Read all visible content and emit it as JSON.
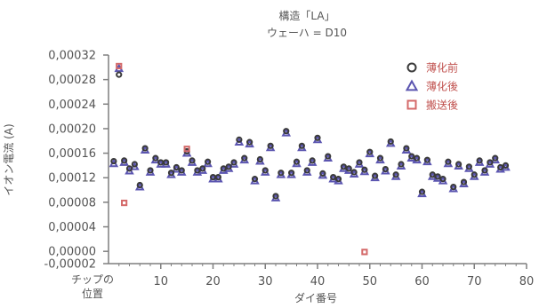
{
  "chart_data": {
    "type": "scatter",
    "title": "構造「LA」",
    "subtitle": "ウェーハ = D10",
    "xlabel": "ダイ番号",
    "ylabel": "イオン電流 (A)",
    "x_first_label_lines": [
      "チップの",
      "位置"
    ],
    "xlim": [
      0,
      80
    ],
    "ylim": [
      -2e-05,
      0.00032
    ],
    "x_ticks": [
      10,
      20,
      30,
      40,
      50,
      60,
      70,
      80
    ],
    "x_tick_labels": [
      "10",
      "20",
      "30",
      "40",
      "50",
      "60",
      "70",
      "80"
    ],
    "y_ticks": [
      -2e-05,
      0.0,
      4e-05,
      8e-05,
      0.00012,
      0.00016,
      0.0002,
      0.00024,
      0.00028,
      0.00032
    ],
    "y_tick_labels": [
      "-0,00002",
      "0,00000",
      "0,00004",
      "0,00008",
      "0,00012",
      "0,00016",
      "0,00020",
      "0,00024",
      "0,00028",
      "0,00032"
    ],
    "legend_position": "top-right",
    "series": [
      {
        "name": "薄化前",
        "marker": "circle",
        "color": "#3a3a3a",
        "x": [
          1,
          2,
          3,
          4,
          5,
          6,
          7,
          8,
          9,
          10,
          11,
          12,
          13,
          14,
          15,
          16,
          17,
          18,
          19,
          20,
          21,
          22,
          23,
          24,
          25,
          26,
          27,
          28,
          29,
          30,
          31,
          32,
          33,
          34,
          35,
          36,
          37,
          38,
          39,
          40,
          41,
          42,
          43,
          44,
          45,
          46,
          47,
          48,
          49,
          50,
          51,
          52,
          53,
          54,
          55,
          56,
          57,
          58,
          59,
          60,
          61,
          62,
          63,
          64,
          65,
          66,
          67,
          68,
          69,
          70,
          71,
          72,
          73,
          74,
          75,
          76
        ],
        "y": [
          0.000147,
          0.000288,
          0.000148,
          0.000135,
          0.000142,
          0.000108,
          0.000168,
          0.000132,
          0.000152,
          0.000145,
          0.000145,
          0.000128,
          0.000137,
          0.000132,
          0.000163,
          0.000148,
          0.000132,
          0.000135,
          0.000146,
          0.000121,
          0.000121,
          0.000135,
          0.000138,
          0.000145,
          0.000182,
          0.000152,
          0.000178,
          0.000118,
          0.00015,
          0.000132,
          0.000172,
          9e-05,
          0.000128,
          0.000196,
          0.000128,
          0.000146,
          0.000172,
          0.000132,
          0.000148,
          0.000185,
          0.000127,
          0.000155,
          0.000121,
          0.000118,
          0.000138,
          0.000135,
          0.000129,
          0.000145,
          0.000133,
          0.000162,
          0.000123,
          0.000152,
          0.000134,
          0.000179,
          0.000125,
          0.000142,
          0.000168,
          0.000155,
          0.000152,
          9.7e-05,
          0.000149,
          0.000125,
          0.000122,
          0.000118,
          0.000146,
          0.000105,
          0.000142,
          0.000113,
          0.000138,
          0.000125,
          0.000148,
          0.000132,
          0.000145,
          0.000152,
          0.000137,
          0.00014
        ]
      },
      {
        "name": "薄化後",
        "marker": "triangle",
        "color": "#5b55b0",
        "x": [
          1,
          2,
          3,
          4,
          5,
          6,
          7,
          8,
          9,
          10,
          11,
          12,
          13,
          14,
          15,
          16,
          17,
          18,
          19,
          20,
          21,
          22,
          23,
          24,
          25,
          26,
          27,
          28,
          29,
          30,
          31,
          32,
          33,
          34,
          35,
          36,
          37,
          38,
          39,
          40,
          41,
          42,
          43,
          44,
          45,
          46,
          47,
          48,
          49,
          50,
          51,
          52,
          53,
          54,
          55,
          56,
          57,
          58,
          59,
          60,
          61,
          62,
          63,
          64,
          65,
          66,
          67,
          68,
          69,
          70,
          71,
          72,
          73,
          74,
          75,
          76
        ],
        "y": [
          0.000143,
          0.000298,
          0.000145,
          0.000131,
          0.000138,
          0.000105,
          0.000165,
          0.000129,
          0.000149,
          0.000142,
          0.000142,
          0.000125,
          0.000134,
          0.000129,
          0.00016,
          0.000145,
          0.000129,
          0.000132,
          0.000143,
          0.000118,
          0.000118,
          0.000132,
          0.000135,
          0.000142,
          0.000178,
          0.000149,
          0.000175,
          0.000115,
          0.000147,
          0.000129,
          0.000169,
          8.7e-05,
          0.000125,
          0.000193,
          0.000125,
          0.000143,
          0.000169,
          0.000129,
          0.000145,
          0.000182,
          0.000124,
          0.000152,
          0.000118,
          0.000115,
          0.000135,
          0.000132,
          0.000126,
          0.000142,
          0.00013,
          0.000159,
          0.00012,
          0.000149,
          0.000131,
          0.000176,
          0.000122,
          0.000139,
          0.000165,
          0.000152,
          0.000149,
          9.4e-05,
          0.000146,
          0.000122,
          0.000119,
          0.000115,
          0.000143,
          0.000102,
          0.000139,
          0.00011,
          0.000135,
          0.000122,
          0.000145,
          0.000129,
          0.000142,
          0.000149,
          0.000134,
          0.000137
        ]
      },
      {
        "name": "搬送後",
        "marker": "square",
        "color": "#d46a6a",
        "x": [
          2,
          3,
          15,
          49
        ],
        "y": [
          0.000302,
          7.9e-05,
          0.000167,
          -1e-06
        ]
      }
    ]
  }
}
